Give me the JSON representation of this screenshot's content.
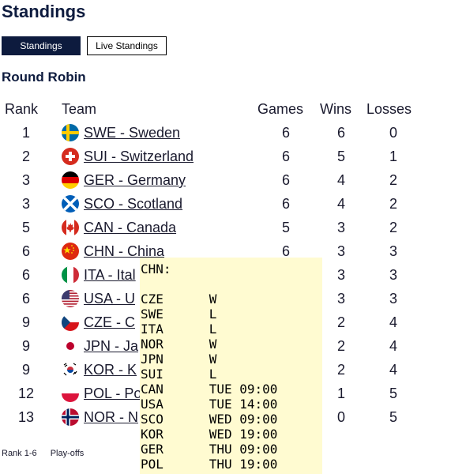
{
  "page": {
    "title": "Standings"
  },
  "tabs": {
    "standings": "Standings",
    "live": "Live Standings"
  },
  "section": "Round Robin",
  "columns": {
    "rank": "Rank",
    "team": "Team",
    "games": "Games",
    "wins": "Wins",
    "losses": "Losses"
  },
  "rows": [
    {
      "rank": "1",
      "team": "SWE - Sweden",
      "games": "6",
      "wins": "6",
      "losses": "0",
      "flag": "sweden-flag-icon"
    },
    {
      "rank": "2",
      "team": "SUI - Switzerland",
      "games": "6",
      "wins": "5",
      "losses": "1",
      "flag": "switzerland-flag-icon"
    },
    {
      "rank": "3",
      "team": "GER - Germany",
      "games": "6",
      "wins": "4",
      "losses": "2",
      "flag": "germany-flag-icon"
    },
    {
      "rank": "3",
      "team": "SCO - Scotland",
      "games": "6",
      "wins": "4",
      "losses": "2",
      "flag": "scotland-flag-icon"
    },
    {
      "rank": "5",
      "team": "CAN - Canada",
      "games": "5",
      "wins": "3",
      "losses": "2",
      "flag": "canada-flag-icon"
    },
    {
      "rank": "6",
      "team": "CHN - China",
      "games": "6",
      "wins": "3",
      "losses": "3",
      "flag": "china-flag-icon"
    },
    {
      "rank": "6",
      "team": "ITA - Ital",
      "games": "",
      "wins": "3",
      "losses": "3",
      "flag": "italy-flag-icon"
    },
    {
      "rank": "6",
      "team": "USA - U",
      "games": "",
      "wins": "3",
      "losses": "3",
      "flag": "usa-flag-icon"
    },
    {
      "rank": "9",
      "team": "CZE - C",
      "games": "",
      "wins": "2",
      "losses": "4",
      "flag": "czech-flag-icon"
    },
    {
      "rank": "9",
      "team": "JPN - Ja",
      "games": "",
      "wins": "2",
      "losses": "4",
      "flag": "japan-flag-icon"
    },
    {
      "rank": "9",
      "team": "KOR - K",
      "games": "",
      "wins": "2",
      "losses": "4",
      "flag": "korea-flag-icon"
    },
    {
      "rank": "12",
      "team": "POL - Po",
      "games": "",
      "wins": "1",
      "losses": "5",
      "flag": "poland-flag-icon"
    },
    {
      "rank": "13",
      "team": "NOR - N",
      "games": "",
      "wins": "0",
      "losses": "5",
      "flag": "norway-flag-icon"
    }
  ],
  "legend": {
    "rank": "Rank 1-6",
    "playoffs": "Play-offs"
  },
  "tooltip": {
    "header": "CHN:",
    "lines": [
      "CZE      W",
      "SWE      L",
      "ITA      L",
      "NOR      W",
      "JPN      W",
      "SUI      L",
      "CAN      TUE 09:00",
      "USA      TUE 14:00",
      "SCO      WED 09:00",
      "KOR      WED 19:00",
      "GER      THU 09:00",
      "POL      THU 19:00"
    ]
  }
}
